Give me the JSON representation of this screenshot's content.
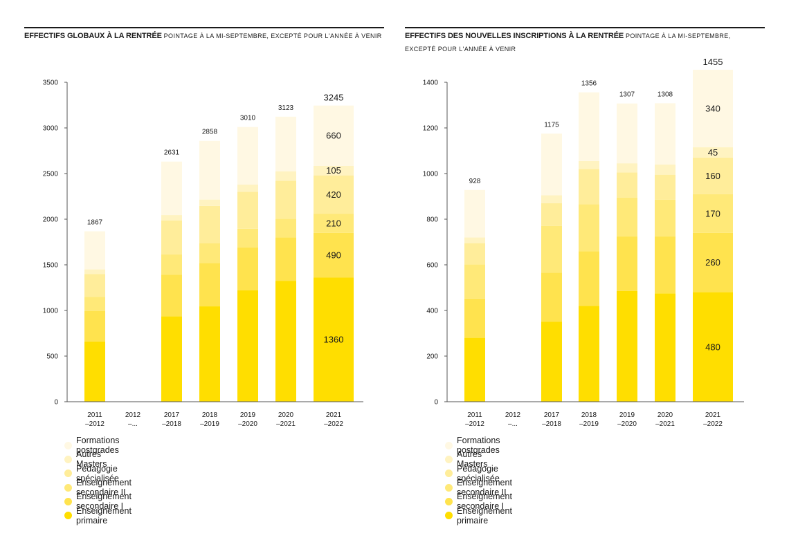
{
  "colors": {
    "primaire": "#FFDE00",
    "secondaire_1": "#FFE34E",
    "secondaire_2": "#FFE978",
    "pedagogie": "#FFED9A",
    "masters": "#FFF3C1",
    "postgrades": "#FFF8E3",
    "axis": "#555555",
    "text": "#1a1a1a"
  },
  "legend": [
    {
      "key": "postgrades",
      "label": "Formations postgrades"
    },
    {
      "key": "masters",
      "label": "Autres Masters"
    },
    {
      "key": "pedagogie",
      "label": "Pédagogie spécialisée"
    },
    {
      "key": "secondaire_2",
      "label": "Enseignement secondaire II"
    },
    {
      "key": "secondaire_1",
      "label": "Enseignement secondaire I"
    },
    {
      "key": "primaire",
      "label": "Enseignement primaire"
    }
  ],
  "chart_data": [
    {
      "type": "bar",
      "stacked": true,
      "title": "EFFECTIFS GLOBAUX À LA RENTRÉE",
      "subtitle": "POINTAGE À LA MI-SEPTEMBRE, EXCEPTÉ POUR L'ANNÉE À VENIR",
      "categories": [
        [
          "2011",
          "–2012"
        ],
        [
          "2012",
          "–..."
        ],
        [
          "2017",
          "–2018"
        ],
        [
          "2018",
          "–2019"
        ],
        [
          "2019",
          "–2020"
        ],
        [
          "2020",
          "–2021"
        ],
        [
          "2021",
          "–2022"
        ]
      ],
      "ylim": [
        0,
        3500
      ],
      "yticks": [
        0,
        500,
        1000,
        1500,
        2000,
        2500,
        3000,
        3500
      ],
      "totals": [
        1867,
        null,
        2631,
        2858,
        3010,
        3123,
        3245
      ],
      "series": [
        {
          "key": "primaire",
          "values": [
            660,
            null,
            935,
            1045,
            1220,
            1325,
            1360
          ]
        },
        {
          "key": "secondaire_1",
          "values": [
            335,
            null,
            455,
            475,
            470,
            475,
            490
          ]
        },
        {
          "key": "secondaire_2",
          "values": [
            155,
            null,
            225,
            215,
            205,
            205,
            210
          ]
        },
        {
          "key": "pedagogie",
          "values": [
            250,
            null,
            370,
            410,
            405,
            415,
            420
          ]
        },
        {
          "key": "masters",
          "values": [
            50,
            null,
            60,
            70,
            80,
            105,
            105
          ]
        },
        {
          "key": "postgrades",
          "values": [
            417,
            null,
            586,
            643,
            630,
            598,
            660
          ]
        }
      ],
      "value_labels": {
        "category_index": 6,
        "labels": [
          "1360",
          "490",
          "210",
          "420",
          "105",
          "660"
        ]
      }
    },
    {
      "type": "bar",
      "stacked": true,
      "title": "EFFECTIFS DES NOUVELLES INSCRIPTIONS À LA RENTRÉE",
      "subtitle": "POINTAGE À LA MI-SEPTEMBRE,",
      "subtitle2": "EXCEPTÉ POUR L'ANNÉE À VENIR",
      "categories": [
        [
          "2011",
          "–2012"
        ],
        [
          "2012",
          "–..."
        ],
        [
          "2017",
          "–2018"
        ],
        [
          "2018",
          "–2019"
        ],
        [
          "2019",
          "–2020"
        ],
        [
          "2020",
          "–2021"
        ],
        [
          "2021",
          "–2022"
        ]
      ],
      "ylim": [
        0,
        1400
      ],
      "yticks": [
        0,
        200,
        400,
        600,
        800,
        1000,
        1200,
        1400
      ],
      "totals": [
        928,
        null,
        1175,
        1356,
        1307,
        1308,
        1455
      ],
      "series": [
        {
          "key": "primaire",
          "values": [
            280,
            null,
            350,
            420,
            485,
            475,
            480
          ]
        },
        {
          "key": "secondaire_1",
          "values": [
            172,
            null,
            215,
            240,
            240,
            250,
            260
          ]
        },
        {
          "key": "secondaire_2",
          "values": [
            150,
            null,
            205,
            205,
            170,
            160,
            170
          ]
        },
        {
          "key": "pedagogie",
          "values": [
            93,
            null,
            100,
            155,
            110,
            110,
            160
          ]
        },
        {
          "key": "masters",
          "values": [
            25,
            null,
            35,
            35,
            40,
            45,
            45
          ]
        },
        {
          "key": "postgrades",
          "values": [
            208,
            null,
            270,
            301,
            262,
            268,
            340
          ]
        }
      ],
      "value_labels": {
        "category_index": 6,
        "labels": [
          "480",
          "260",
          "170",
          "160",
          "45",
          "340"
        ]
      }
    }
  ]
}
